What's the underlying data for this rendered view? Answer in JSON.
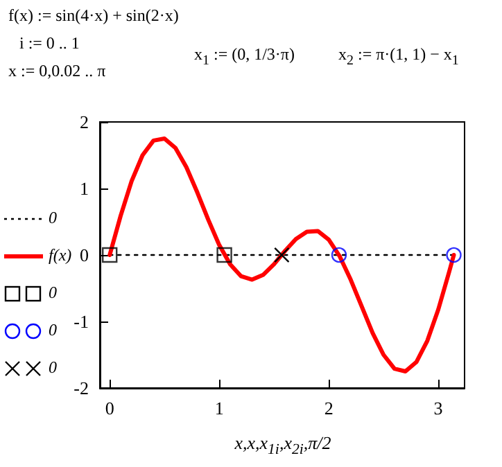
{
  "chart_data": {
    "type": "line",
    "annotations": [
      "f(x) := sin(4·x) + sin(2·x)",
      "i := 0 .. 1",
      "x := 0,0.02 .. π",
      "x$_{1}$ := (0, 1/3·π)",
      "x$_{2}$ := π·(1, 1) − x$_{1}$"
    ],
    "xlabel": "x,x,x$_{1i}$,x$_{2i}$,π/2",
    "xlim": [
      -0.09,
      3.24
    ],
    "xticks": [
      0,
      1,
      2,
      3
    ],
    "ylim": [
      -2,
      2
    ],
    "yticks": [
      -2,
      -1,
      0,
      1,
      2
    ],
    "grid": false,
    "legend": "left",
    "series": [
      {
        "name": "0",
        "color": "#000000",
        "line_style": "dotted",
        "marker": "none",
        "x": [
          0,
          3.142
        ],
        "values": [
          0,
          0
        ]
      },
      {
        "name": "f(x)",
        "color": "#ff0000",
        "line_style": "solid",
        "marker": "none",
        "x": [
          0,
          0.1,
          0.2,
          0.3,
          0.4,
          0.5,
          0.6,
          0.7,
          0.8,
          0.9,
          1.0,
          1.1,
          1.2,
          1.3,
          1.4,
          1.5,
          1.6,
          1.7,
          1.8,
          1.9,
          2.0,
          2.1,
          2.2,
          2.3,
          2.4,
          2.5,
          2.6,
          2.7,
          2.8,
          2.9,
          3.0,
          3.1,
          3.142
        ],
        "values": [
          0,
          0.59,
          1.11,
          1.5,
          1.72,
          1.75,
          1.61,
          1.32,
          0.94,
          0.53,
          0.15,
          -0.14,
          -0.32,
          -0.37,
          -0.3,
          -0.14,
          0.06,
          0.24,
          0.35,
          0.36,
          0.23,
          -0.02,
          -0.37,
          -0.77,
          -1.17,
          -1.5,
          -1.71,
          -1.75,
          -1.61,
          -1.29,
          -0.82,
          -0.25,
          0
        ]
      },
      {
        "name": "0",
        "type": "scatter",
        "color": "#000000",
        "marker": "square",
        "x": [
          0,
          1.047
        ],
        "values": [
          0,
          0
        ]
      },
      {
        "name": "0",
        "type": "scatter",
        "color": "#0000ff",
        "marker": "circle",
        "x": [
          2.094,
          3.142
        ],
        "values": [
          0,
          0
        ]
      },
      {
        "name": "0",
        "type": "scatter",
        "color": "#000000",
        "marker": "cross",
        "x": [
          1.571,
          1.571
        ],
        "values": [
          0,
          0
        ]
      }
    ]
  }
}
